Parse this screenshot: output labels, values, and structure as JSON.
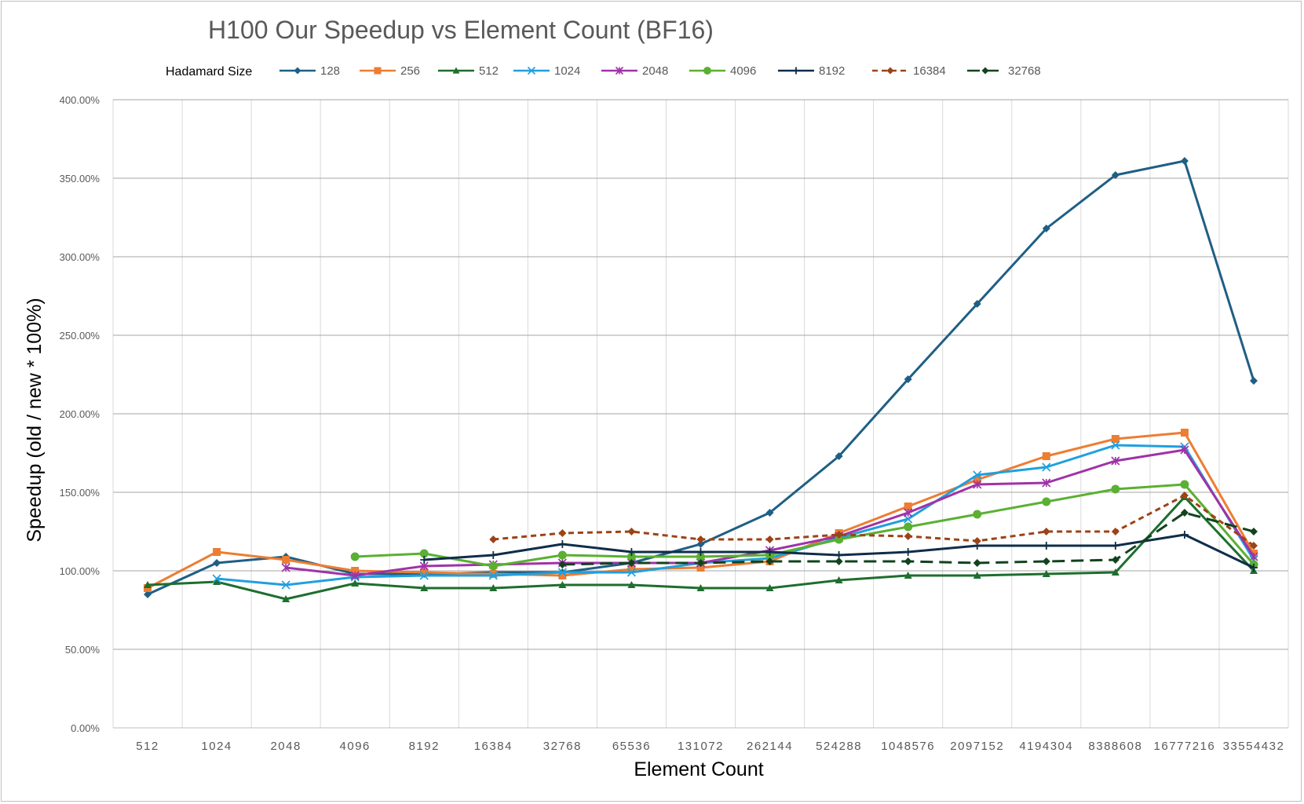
{
  "chart_data": {
    "type": "line",
    "title": "H100 Our Speedup vs Element Count (BF16)",
    "xlabel": "Element Count",
    "ylabel": "Speedup (old / new * 100%)",
    "legend_title": "Hadamard Size",
    "legend_position": "top",
    "grid": true,
    "ylim": [
      0,
      400
    ],
    "yticks": [
      "0.00%",
      "50.00%",
      "100.00%",
      "150.00%",
      "200.00%",
      "250.00%",
      "300.00%",
      "350.00%",
      "400.00%"
    ],
    "categories": [
      "512",
      "1024",
      "2048",
      "4096",
      "8192",
      "16384",
      "32768",
      "65536",
      "131072",
      "262144",
      "524288",
      "1048576",
      "2097152",
      "4194304",
      "8388608",
      "16777216",
      "33554432"
    ],
    "series": [
      {
        "name": "128",
        "color": "#1f5f84",
        "marker": "diamond",
        "dash": "solid",
        "values": [
          85,
          105,
          109,
          98,
          98,
          99,
          99,
          105,
          117,
          137,
          173,
          222,
          270,
          318,
          352,
          361,
          221
        ]
      },
      {
        "name": "256",
        "color": "#ed7d31",
        "marker": "square",
        "dash": "solid",
        "values": [
          89,
          112,
          107,
          100,
          99,
          98,
          97,
          101,
          102,
          106,
          124,
          141,
          158,
          173,
          184,
          188,
          111
        ]
      },
      {
        "name": "512",
        "color": "#1e6e2e",
        "marker": "triangle",
        "dash": "solid",
        "values": [
          91,
          93,
          82,
          92,
          89,
          89,
          91,
          91,
          89,
          89,
          94,
          97,
          97,
          98,
          99,
          147,
          100
        ]
      },
      {
        "name": "1024",
        "color": "#1fa0de",
        "marker": "x",
        "dash": "solid",
        "values": [
          null,
          95,
          91,
          96,
          97,
          97,
          99,
          99,
          105,
          108,
          121,
          133,
          161,
          166,
          180,
          179,
          107
        ]
      },
      {
        "name": "2048",
        "color": "#a032a8",
        "marker": "star",
        "dash": "solid",
        "values": [
          null,
          null,
          102,
          97,
          103,
          104,
          105,
          105,
          105,
          113,
          122,
          137,
          155,
          156,
          170,
          177,
          109
        ]
      },
      {
        "name": "4096",
        "color": "#5ab032",
        "marker": "circle",
        "dash": "solid",
        "values": [
          null,
          null,
          null,
          109,
          111,
          103,
          110,
          109,
          109,
          110,
          120,
          128,
          136,
          144,
          152,
          155,
          104
        ]
      },
      {
        "name": "8192",
        "color": "#0f2d4a",
        "marker": "plus",
        "dash": "solid",
        "values": [
          null,
          null,
          null,
          null,
          107,
          110,
          117,
          112,
          112,
          112,
          110,
          112,
          116,
          116,
          116,
          123,
          102
        ]
      },
      {
        "name": "16384",
        "color": "#9c4317",
        "marker": "diamond",
        "dash": "dashed",
        "values": [
          null,
          null,
          null,
          null,
          null,
          120,
          124,
          125,
          120,
          120,
          123,
          122,
          119,
          125,
          125,
          148,
          116
        ]
      },
      {
        "name": "32768",
        "color": "#12421e",
        "marker": "diamond",
        "dash": "longdash",
        "values": [
          null,
          null,
          null,
          null,
          null,
          null,
          104,
          105,
          105,
          106,
          106,
          106,
          105,
          106,
          107,
          137,
          125
        ]
      }
    ]
  }
}
